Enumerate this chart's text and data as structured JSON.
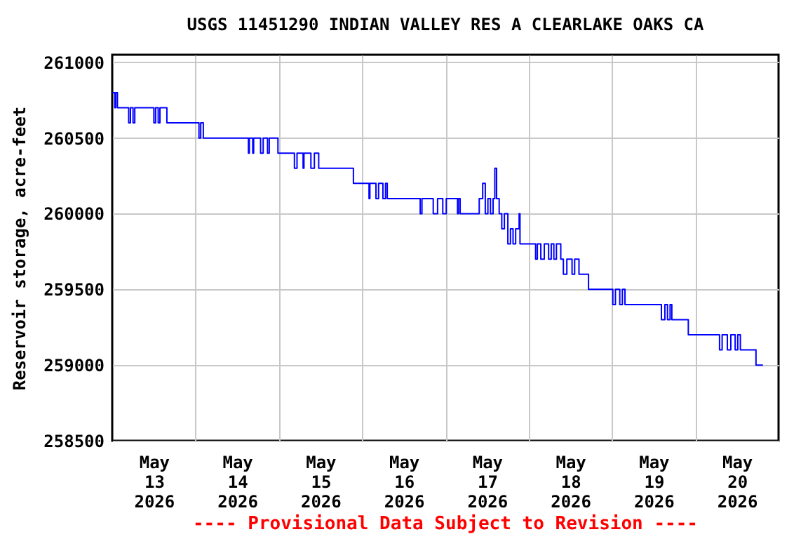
{
  "chart_data": {
    "type": "step",
    "title": "USGS 11451290 INDIAN VALLEY RES A CLEARLAKE OAKS CA",
    "ylabel": "Reservoir storage, acre-feet",
    "annotations": [
      "---- Provisional Data Subject to Revision ----"
    ],
    "x": [
      "2026-05-13T00:00",
      "2026-05-13T00:45",
      "2026-05-13T01:00",
      "2026-05-13T01:30",
      "2026-05-13T04:45",
      "2026-05-13T05:15",
      "2026-05-13T06:00",
      "2026-05-13T06:30",
      "2026-05-13T12:00",
      "2026-05-13T12:30",
      "2026-05-13T13:15",
      "2026-05-13T13:45",
      "2026-05-13T15:45",
      "2026-05-14T01:00",
      "2026-05-14T01:30",
      "2026-05-14T02:15",
      "2026-05-14T15:15",
      "2026-05-14T15:30",
      "2026-05-14T16:30",
      "2026-05-14T16:45",
      "2026-05-14T18:45",
      "2026-05-14T19:30",
      "2026-05-14T20:45",
      "2026-05-14T21:15",
      "2026-05-14T23:45",
      "2026-05-15T04:30",
      "2026-05-15T05:15",
      "2026-05-15T07:00",
      "2026-05-15T07:15",
      "2026-05-15T09:15",
      "2026-05-15T10:15",
      "2026-05-15T11:30",
      "2026-05-15T21:30",
      "2026-05-16T02:00",
      "2026-05-16T02:15",
      "2026-05-16T04:00",
      "2026-05-16T04:45",
      "2026-05-16T06:00",
      "2026-05-16T06:45",
      "2026-05-16T07:15",
      "2026-05-16T16:45",
      "2026-05-16T17:15",
      "2026-05-16T20:30",
      "2026-05-16T21:45",
      "2026-05-16T23:15",
      "2026-05-17T00:15",
      "2026-05-17T03:30",
      "2026-05-17T03:45",
      "2026-05-17T04:15",
      "2026-05-17T09:45",
      "2026-05-17T10:45",
      "2026-05-17T11:30",
      "2026-05-17T12:15",
      "2026-05-17T13:00",
      "2026-05-17T13:45",
      "2026-05-17T14:15",
      "2026-05-17T14:45",
      "2026-05-17T15:30",
      "2026-05-17T16:15",
      "2026-05-17T17:00",
      "2026-05-17T18:00",
      "2026-05-17T18:45",
      "2026-05-17T19:30",
      "2026-05-17T20:15",
      "2026-05-17T21:15",
      "2026-05-17T21:30",
      "2026-05-18T02:00",
      "2026-05-18T02:30",
      "2026-05-18T03:30",
      "2026-05-18T04:30",
      "2026-05-18T05:45",
      "2026-05-18T06:30",
      "2026-05-18T07:15",
      "2026-05-18T08:00",
      "2026-05-18T09:15",
      "2026-05-18T10:00",
      "2026-05-18T11:00",
      "2026-05-18T12:30",
      "2026-05-18T13:15",
      "2026-05-18T14:30",
      "2026-05-18T17:15",
      "2026-05-19T00:15",
      "2026-05-19T01:00",
      "2026-05-19T02:15",
      "2026-05-19T03:00",
      "2026-05-19T03:45",
      "2026-05-19T14:15",
      "2026-05-19T15:15",
      "2026-05-19T16:00",
      "2026-05-19T16:45",
      "2026-05-19T17:15",
      "2026-05-19T22:00",
      "2026-05-20T07:00",
      "2026-05-20T07:45",
      "2026-05-20T09:15",
      "2026-05-20T10:15",
      "2026-05-20T11:30",
      "2026-05-20T12:15",
      "2026-05-20T13:00",
      "2026-05-20T17:30",
      "2026-05-20T19:30"
    ],
    "series": [
      {
        "color": "#0000ff",
        "values": [
          260800,
          260700,
          260800,
          260700,
          260600,
          260700,
          260600,
          260700,
          260600,
          260700,
          260600,
          260700,
          260600,
          260500,
          260600,
          260500,
          260400,
          260500,
          260400,
          260500,
          260400,
          260500,
          260400,
          260500,
          260400,
          260300,
          260400,
          260300,
          260400,
          260300,
          260400,
          260300,
          260200,
          260100,
          260200,
          260100,
          260200,
          260100,
          260200,
          260100,
          260000,
          260100,
          260000,
          260100,
          260000,
          260100,
          260000,
          260100,
          260000,
          260100,
          260200,
          260000,
          260100,
          260000,
          260100,
          260300,
          260100,
          260000,
          259900,
          260000,
          259800,
          259900,
          259800,
          259900,
          260000,
          259800,
          259700,
          259800,
          259700,
          259800,
          259700,
          259800,
          259700,
          259800,
          259700,
          259600,
          259700,
          259600,
          259700,
          259600,
          259500,
          259400,
          259500,
          259400,
          259500,
          259400,
          259300,
          259400,
          259300,
          259400,
          259300,
          259200,
          259100,
          259200,
          259100,
          259200,
          259100,
          259200,
          259100,
          259000,
          259000
        ]
      }
    ],
    "xlim": [
      "2026-05-13T00:00",
      "2026-05-21T00:00"
    ],
    "xticks": [
      {
        "value": "2026-05-13T12:00",
        "label": "May\n13\n2026"
      },
      {
        "value": "2026-05-14T00:00",
        "label": null
      },
      {
        "value": "2026-05-14T12:00",
        "label": "May\n14\n2026"
      },
      {
        "value": "2026-05-15T00:00",
        "label": null
      },
      {
        "value": "2026-05-15T12:00",
        "label": "May\n15\n2026"
      },
      {
        "value": "2026-05-16T00:00",
        "label": null
      },
      {
        "value": "2026-05-16T12:00",
        "label": "May\n16\n2026"
      },
      {
        "value": "2026-05-17T00:00",
        "label": null
      },
      {
        "value": "2026-05-17T12:00",
        "label": "May\n17\n2026"
      },
      {
        "value": "2026-05-18T00:00",
        "label": null
      },
      {
        "value": "2026-05-18T12:00",
        "label": "May\n18\n2026"
      },
      {
        "value": "2026-05-19T00:00",
        "label": null
      },
      {
        "value": "2026-05-19T12:00",
        "label": "May\n19\n2026"
      },
      {
        "value": "2026-05-20T00:00",
        "label": null
      },
      {
        "value": "2026-05-20T12:00",
        "label": "May\n20\n2026"
      }
    ],
    "ylim": [
      258500,
      261050
    ],
    "yticks": [
      258500,
      259000,
      259500,
      260000,
      260500,
      261000
    ],
    "grid": true,
    "marker": "none",
    "line_style": "solid"
  }
}
